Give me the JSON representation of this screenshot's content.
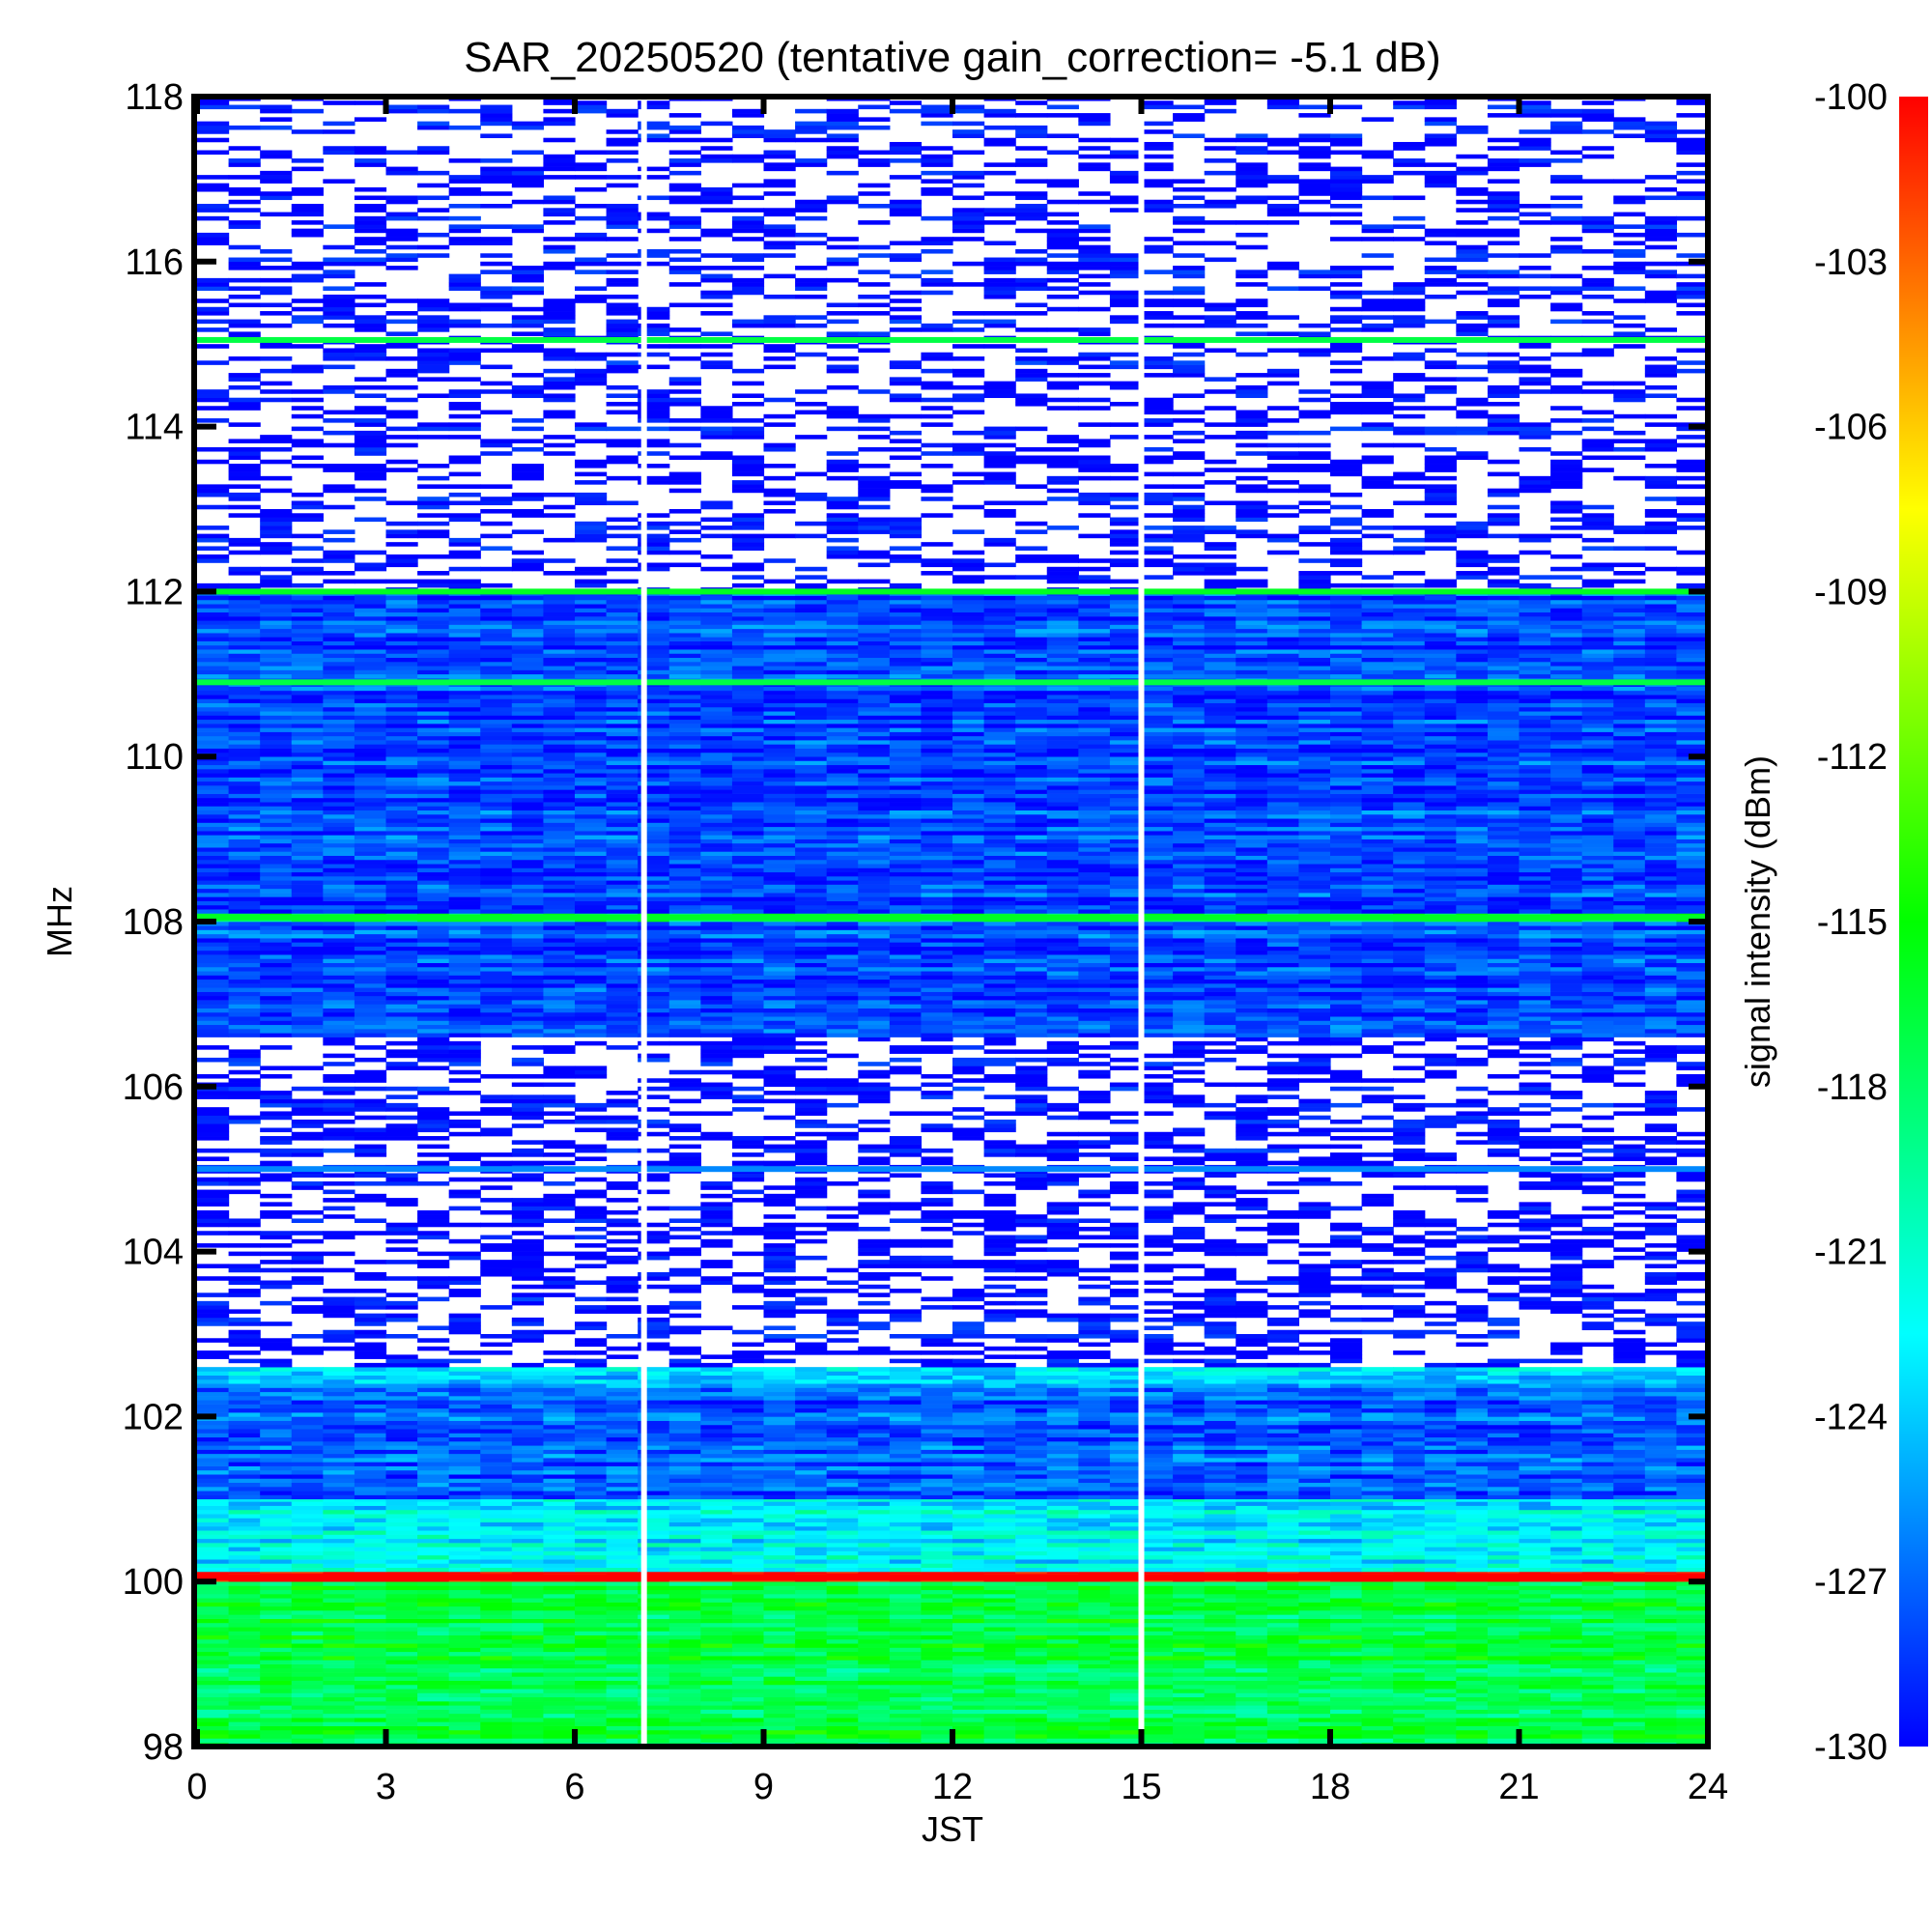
{
  "chart_data": {
    "type": "heatmap",
    "title": "SAR_20250520 (tentative gain_correction= -5.1 dB)",
    "xlabel": "JST",
    "ylabel": "MHz",
    "colorbar_label": "signal intensity (dBm)",
    "xlim": [
      0,
      24
    ],
    "ylim": [
      98,
      118
    ],
    "x_ticks": [
      "0",
      "3",
      "6",
      "9",
      "12",
      "15",
      "18",
      "21",
      "24"
    ],
    "y_ticks": [
      "98",
      "100",
      "102",
      "104",
      "106",
      "108",
      "110",
      "112",
      "114",
      "116",
      "118"
    ],
    "colorbar_range": [
      -130,
      -100
    ],
    "colorbar_ticks": [
      "-100",
      "-103",
      "-106",
      "-109",
      "-112",
      "-115",
      "-118",
      "-121",
      "-124",
      "-127",
      "-130"
    ],
    "colormap": [
      "#0000ff",
      "#00ffff",
      "#00ff00",
      "#ffff00",
      "#ff0000"
    ],
    "gaps_jst": [
      7.1,
      15.0
    ],
    "bands": [
      {
        "f_min": 98.0,
        "f_max": 100.0,
        "level_dbm": -117,
        "noise": 0.04
      },
      {
        "f_min": 100.0,
        "f_max": 100.12,
        "level_dbm": -100,
        "noise": 0.0
      },
      {
        "f_min": 100.12,
        "f_max": 101.0,
        "level_dbm": -122.5,
        "noise": 0.05
      },
      {
        "f_min": 101.0,
        "f_max": 102.35,
        "level_dbm": -127.5,
        "noise": 0.04
      },
      {
        "f_min": 102.35,
        "f_max": 102.6,
        "level_dbm": -124,
        "noise": 0.1
      },
      {
        "f_min": 102.6,
        "f_max": 106.6,
        "level_dbm": -130,
        "noise": 0.85,
        "sparse": true
      },
      {
        "f_min": 106.6,
        "f_max": 108.0,
        "level_dbm": -128,
        "noise": 0.06
      },
      {
        "f_min": 108.0,
        "f_max": 108.1,
        "level_dbm": -116,
        "noise": 0.0
      },
      {
        "f_min": 108.1,
        "f_max": 112.0,
        "level_dbm": -128,
        "noise": 0.08
      },
      {
        "f_min": 112.0,
        "f_max": 118.2,
        "level_dbm": -130,
        "noise": 0.7,
        "sparse": true
      }
    ],
    "lines": [
      {
        "freq_mhz": 100.05,
        "level_dbm": -100
      },
      {
        "freq_mhz": 105.0,
        "level_dbm": -126
      },
      {
        "freq_mhz": 108.05,
        "level_dbm": -116
      },
      {
        "freq_mhz": 110.9,
        "level_dbm": -117
      },
      {
        "freq_mhz": 112.0,
        "level_dbm": -116
      },
      {
        "freq_mhz": 115.05,
        "level_dbm": -117
      }
    ]
  }
}
